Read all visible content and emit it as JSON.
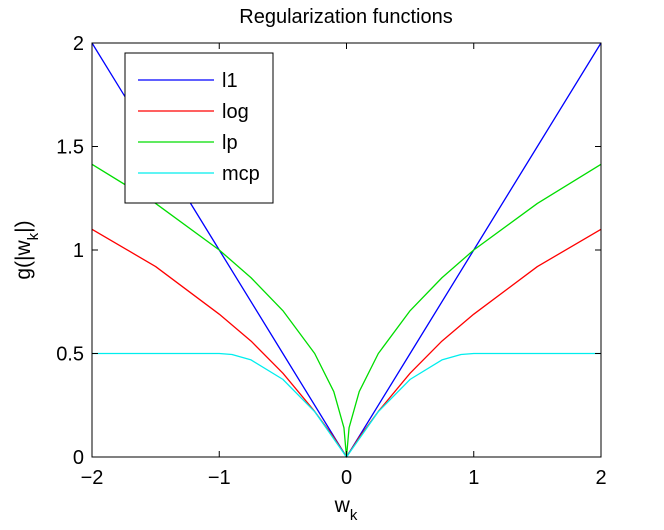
{
  "chart_data": {
    "type": "line",
    "title": "Regularization functions",
    "xlabel": {
      "main": "w",
      "sub": "k"
    },
    "ylabel": {
      "pre": "g(|w",
      "sub": "k",
      "post": "|)"
    },
    "xlim": [
      -2,
      2
    ],
    "ylim": [
      0,
      2
    ],
    "xticks": [
      -2,
      -1,
      0,
      1,
      2
    ],
    "xtick_labels": [
      "−2",
      "−1",
      "0",
      "1",
      "2"
    ],
    "yticks": [
      0,
      0.5,
      1,
      1.5,
      2
    ],
    "ytick_labels": [
      "0",
      "0.5",
      "1",
      "1.5",
      "2"
    ],
    "grid": false,
    "legend_position": "top-left",
    "series": [
      {
        "name": "l1",
        "color": "#0000ff",
        "points": [
          [
            -2,
            2.0
          ],
          [
            -1.5,
            1.5
          ],
          [
            -1,
            1.0
          ],
          [
            -0.5,
            0.5
          ],
          [
            0,
            0
          ],
          [
            0.5,
            0.5
          ],
          [
            1,
            1.0
          ],
          [
            1.5,
            1.5
          ],
          [
            2,
            2.0
          ]
        ]
      },
      {
        "name": "log",
        "color": "#ff0000",
        "points": [
          [
            -2,
            1.1
          ],
          [
            -1.5,
            0.92
          ],
          [
            -1,
            0.69
          ],
          [
            -0.75,
            0.56
          ],
          [
            -0.5,
            0.405
          ],
          [
            -0.25,
            0.22
          ],
          [
            -0.1,
            0.095
          ],
          [
            0,
            0
          ],
          [
            0.1,
            0.095
          ],
          [
            0.25,
            0.22
          ],
          [
            0.5,
            0.405
          ],
          [
            0.75,
            0.56
          ],
          [
            1,
            0.69
          ],
          [
            1.5,
            0.92
          ],
          [
            2,
            1.1
          ]
        ]
      },
      {
        "name": "lp",
        "color": "#00dd00",
        "points": [
          [
            -2,
            1.414
          ],
          [
            -1.5,
            1.225
          ],
          [
            -1,
            1.0
          ],
          [
            -0.75,
            0.866
          ],
          [
            -0.5,
            0.707
          ],
          [
            -0.25,
            0.5
          ],
          [
            -0.1,
            0.316
          ],
          [
            -0.02,
            0.141
          ],
          [
            0,
            0
          ],
          [
            0.02,
            0.141
          ],
          [
            0.1,
            0.316
          ],
          [
            0.25,
            0.5
          ],
          [
            0.5,
            0.707
          ],
          [
            0.75,
            0.866
          ],
          [
            1,
            1.0
          ],
          [
            1.5,
            1.225
          ],
          [
            2,
            1.414
          ]
        ]
      },
      {
        "name": "mcp",
        "color": "#00eeee",
        "points": [
          [
            -2,
            0.5
          ],
          [
            -1.5,
            0.5
          ],
          [
            -1,
            0.5
          ],
          [
            -0.9,
            0.495
          ],
          [
            -0.75,
            0.469
          ],
          [
            -0.5,
            0.375
          ],
          [
            -0.25,
            0.219
          ],
          [
            0,
            0
          ],
          [
            0.25,
            0.219
          ],
          [
            0.5,
            0.375
          ],
          [
            0.75,
            0.469
          ],
          [
            0.9,
            0.495
          ],
          [
            1,
            0.5
          ],
          [
            1.5,
            0.5
          ],
          [
            2,
            0.5
          ]
        ]
      }
    ]
  }
}
